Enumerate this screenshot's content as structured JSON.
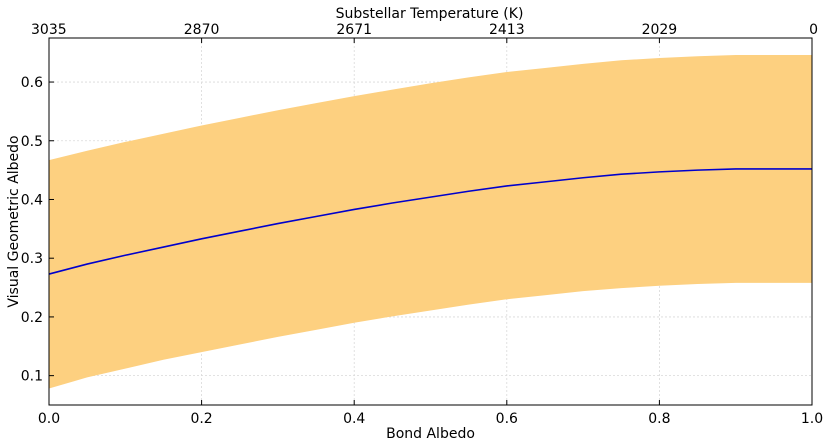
{
  "chart_data": {
    "type": "line",
    "xlabel": "Bond Albedo",
    "ylabel": "Visual Geometric Albedo",
    "top_xlabel": "Substellar Temperature (K)",
    "xlim": [
      0.0,
      1.0
    ],
    "ylim": [
      0.05,
      0.675
    ],
    "grid": true,
    "x_ticks": [
      {
        "value": 0.0,
        "label": "0.0"
      },
      {
        "value": 0.2,
        "label": "0.2"
      },
      {
        "value": 0.4,
        "label": "0.4"
      },
      {
        "value": 0.6,
        "label": "0.6"
      },
      {
        "value": 0.8,
        "label": "0.8"
      },
      {
        "value": 1.0,
        "label": "1.0"
      }
    ],
    "y_ticks": [
      {
        "value": 0.1,
        "label": "0.1"
      },
      {
        "value": 0.2,
        "label": "0.2"
      },
      {
        "value": 0.3,
        "label": "0.3"
      },
      {
        "value": 0.4,
        "label": "0.4"
      },
      {
        "value": 0.5,
        "label": "0.5"
      },
      {
        "value": 0.6,
        "label": "0.6"
      }
    ],
    "top_x_ticks": [
      {
        "value": 0.0,
        "label": "3035"
      },
      {
        "value": 0.2,
        "label": "2870"
      },
      {
        "value": 0.4,
        "label": "2671"
      },
      {
        "value": 0.6,
        "label": "2413"
      },
      {
        "value": 0.8,
        "label": "2029"
      },
      {
        "value": 1.0,
        "label": "0"
      }
    ],
    "x": [
      0.0,
      0.05,
      0.1,
      0.15,
      0.2,
      0.25,
      0.3,
      0.35,
      0.4,
      0.45,
      0.5,
      0.55,
      0.6,
      0.65,
      0.7,
      0.75,
      0.8,
      0.85,
      0.9,
      0.95,
      1.0
    ],
    "series": [
      {
        "values": [
          0.273,
          0.29,
          0.305,
          0.319,
          0.333,
          0.346,
          0.359,
          0.371,
          0.383,
          0.394,
          0.404,
          0.414,
          0.423,
          0.43,
          0.437,
          0.443,
          0.447,
          0.45,
          0.452,
          0.452,
          0.452
        ],
        "color": "#0000cc"
      }
    ],
    "band": {
      "upper": [
        0.467,
        0.483,
        0.498,
        0.512,
        0.526,
        0.539,
        0.552,
        0.564,
        0.576,
        0.587,
        0.598,
        0.608,
        0.617,
        0.624,
        0.631,
        0.637,
        0.641,
        0.644,
        0.646,
        0.646,
        0.646
      ],
      "lower": [
        0.078,
        0.097,
        0.112,
        0.127,
        0.14,
        0.153,
        0.166,
        0.178,
        0.19,
        0.201,
        0.211,
        0.221,
        0.23,
        0.237,
        0.244,
        0.249,
        0.253,
        0.256,
        0.258,
        0.258,
        0.258
      ],
      "color": "#fdd080"
    }
  }
}
